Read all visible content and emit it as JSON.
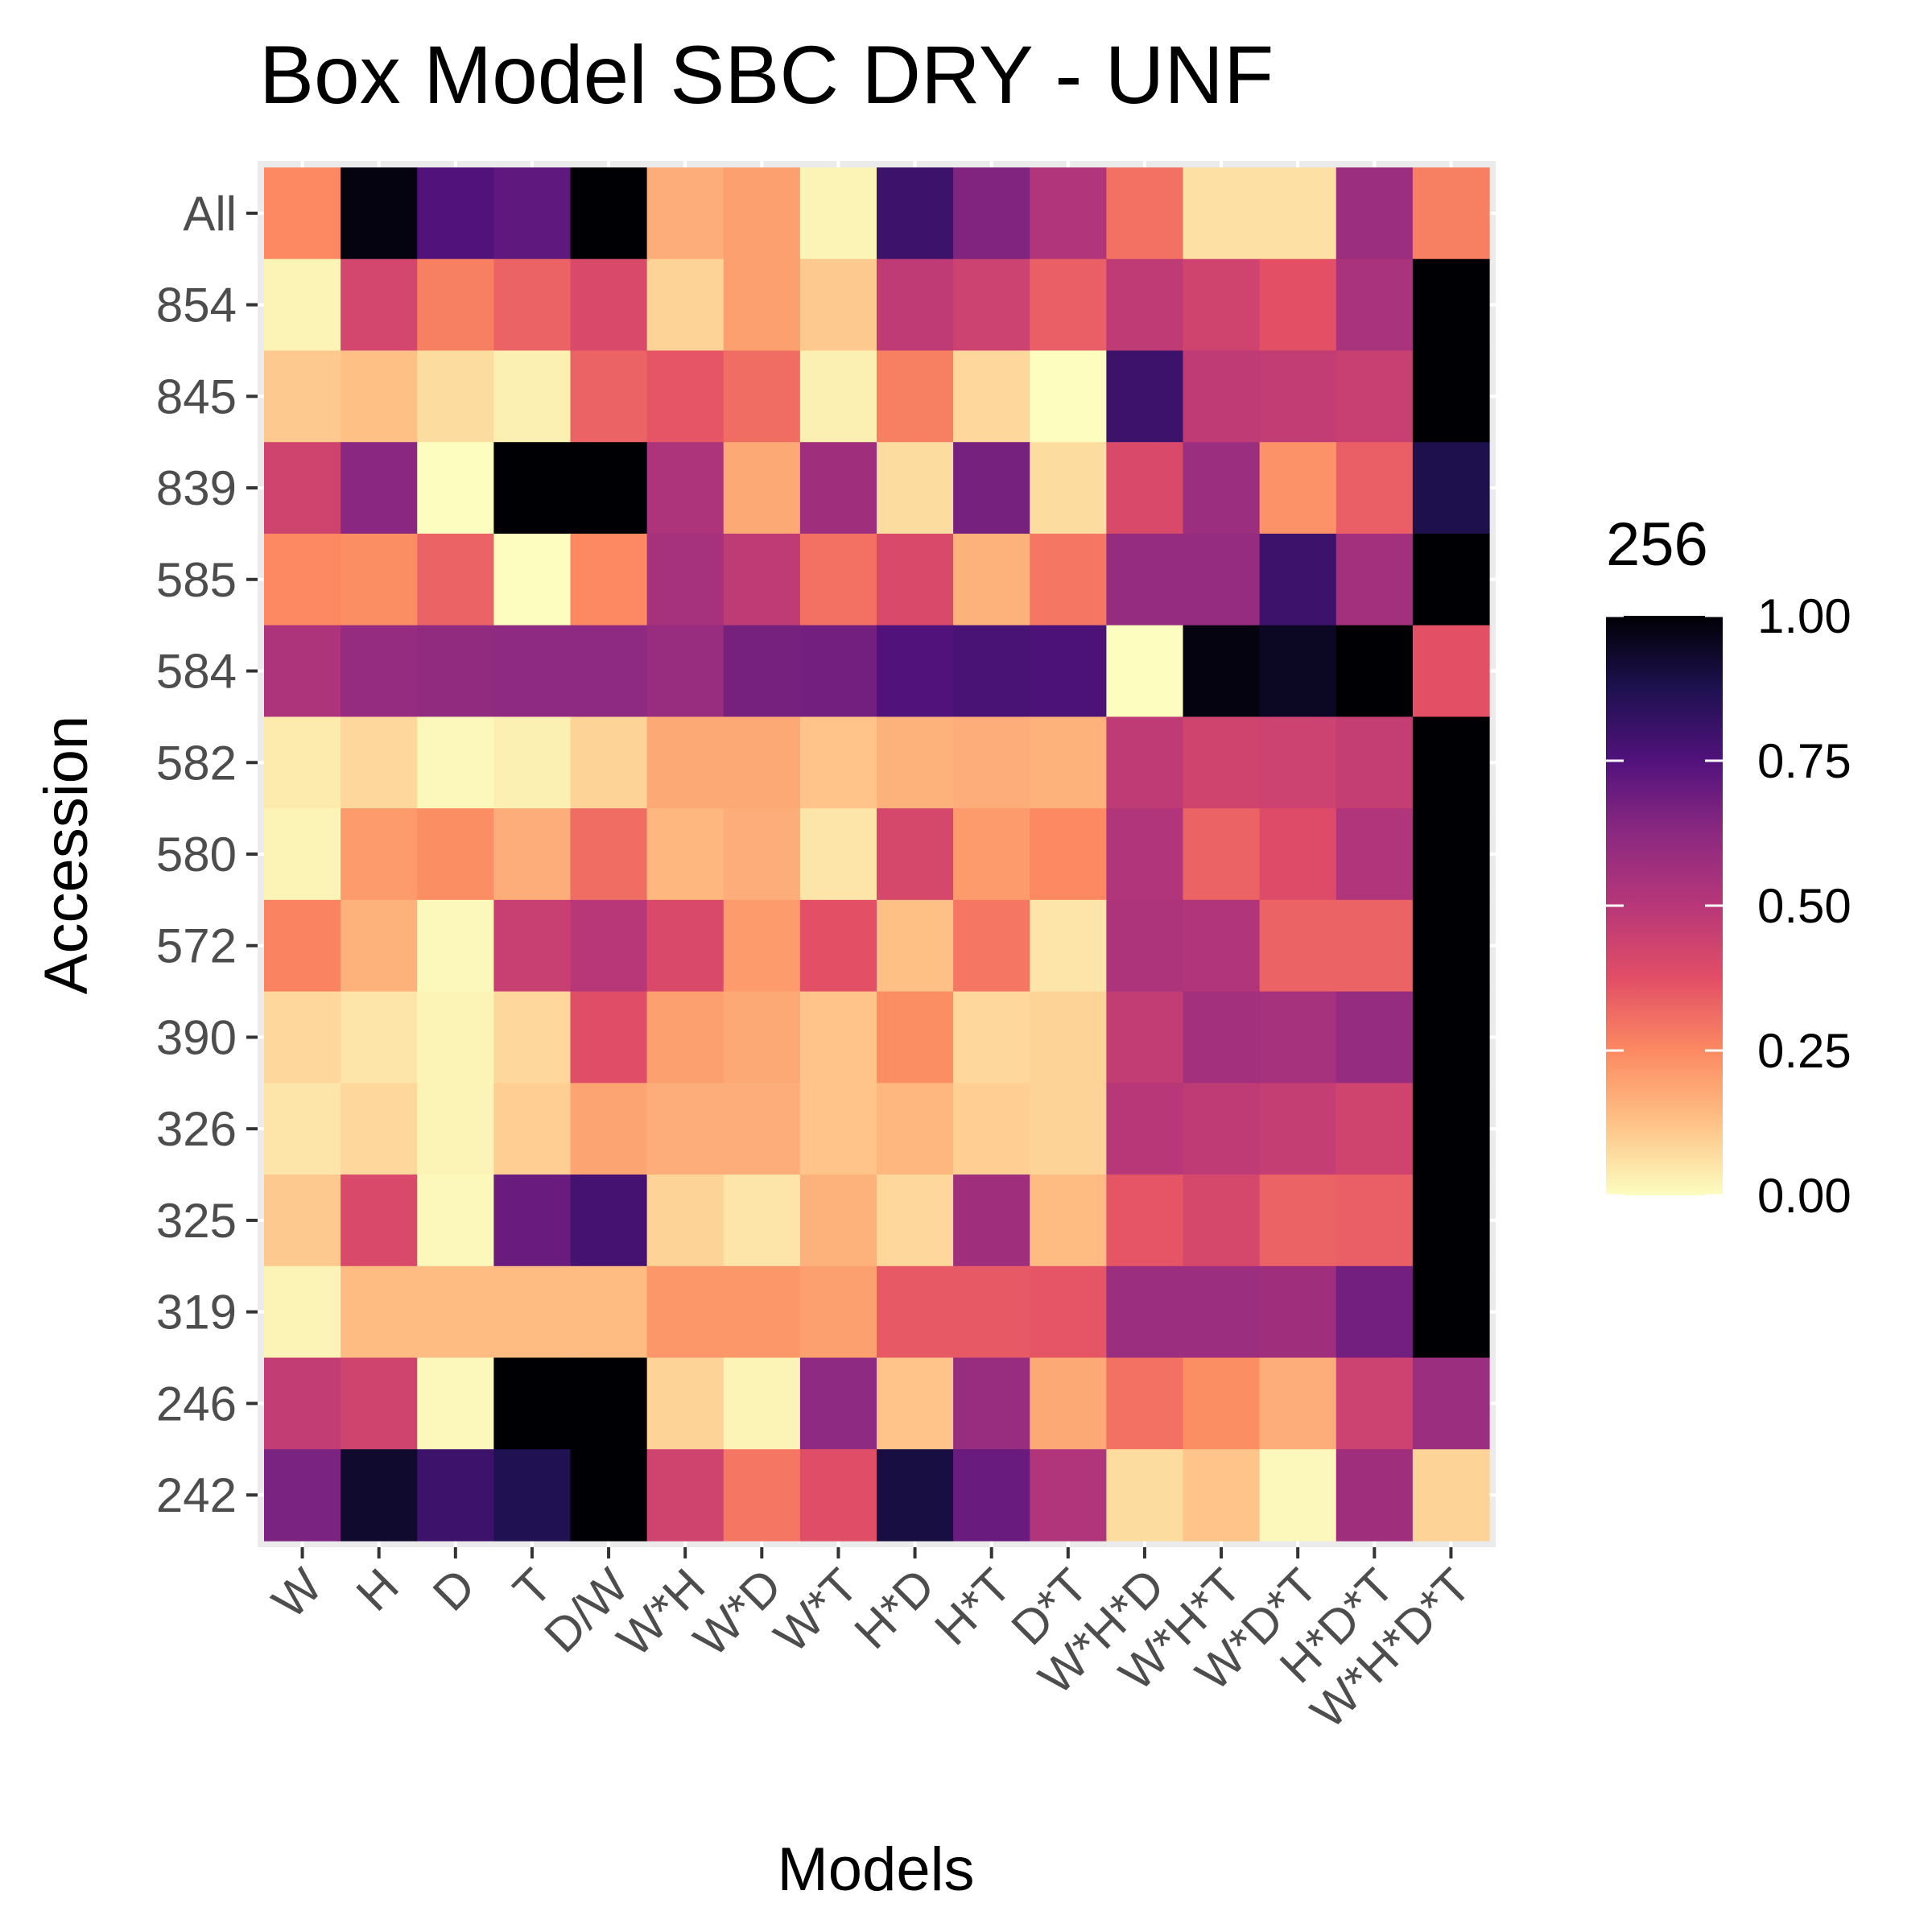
{
  "chart_data": {
    "type": "heatmap",
    "title": "Box Model SBC DRY - UNF",
    "xlabel": "Models",
    "ylabel": "Accession",
    "x": [
      "W",
      "H",
      "D",
      "T",
      "D/W",
      "W*H",
      "W*D",
      "W*T",
      "H*D",
      "H*T",
      "D*T",
      "W*H*D",
      "W*H*T",
      "W*D*T",
      "H*D*T",
      "W*H*D*T"
    ],
    "y": [
      "All",
      "854",
      "845",
      "839",
      "585",
      "584",
      "582",
      "580",
      "572",
      "390",
      "326",
      "325",
      "319",
      "246",
      "242"
    ],
    "values": [
      [
        0.25,
        0.98,
        0.75,
        0.72,
        1.0,
        0.17,
        0.2,
        0.02,
        0.8,
        0.65,
        0.52,
        0.3,
        0.06,
        0.06,
        0.58,
        0.27
      ],
      [
        0.02,
        0.42,
        0.27,
        0.33,
        0.4,
        0.09,
        0.2,
        0.11,
        0.48,
        0.44,
        0.34,
        0.48,
        0.43,
        0.37,
        0.54,
        1.0
      ],
      [
        0.11,
        0.13,
        0.07,
        0.03,
        0.33,
        0.36,
        0.31,
        0.03,
        0.27,
        0.08,
        0.0,
        0.8,
        0.48,
        0.47,
        0.45,
        1.0
      ],
      [
        0.43,
        0.63,
        0.0,
        1.0,
        1.0,
        0.53,
        0.18,
        0.57,
        0.07,
        0.67,
        0.07,
        0.4,
        0.58,
        0.23,
        0.34,
        0.88
      ],
      [
        0.25,
        0.24,
        0.33,
        0.0,
        0.25,
        0.55,
        0.48,
        0.3,
        0.4,
        0.16,
        0.29,
        0.6,
        0.6,
        0.8,
        0.56,
        1.0
      ],
      [
        0.53,
        0.6,
        0.61,
        0.62,
        0.62,
        0.59,
        0.67,
        0.68,
        0.75,
        0.77,
        0.76,
        0.0,
        0.98,
        0.95,
        1.0,
        0.37
      ],
      [
        0.04,
        0.08,
        0.01,
        0.03,
        0.09,
        0.18,
        0.18,
        0.12,
        0.16,
        0.17,
        0.16,
        0.48,
        0.43,
        0.44,
        0.46,
        1.0
      ],
      [
        0.02,
        0.21,
        0.24,
        0.17,
        0.31,
        0.15,
        0.17,
        0.05,
        0.41,
        0.21,
        0.25,
        0.52,
        0.33,
        0.39,
        0.52,
        1.0
      ],
      [
        0.26,
        0.16,
        0.01,
        0.45,
        0.5,
        0.4,
        0.21,
        0.37,
        0.13,
        0.29,
        0.05,
        0.53,
        0.52,
        0.33,
        0.33,
        1.0
      ],
      [
        0.08,
        0.05,
        0.02,
        0.08,
        0.38,
        0.2,
        0.18,
        0.12,
        0.24,
        0.08,
        0.09,
        0.47,
        0.56,
        0.55,
        0.6,
        1.0
      ],
      [
        0.05,
        0.08,
        0.02,
        0.1,
        0.19,
        0.17,
        0.17,
        0.12,
        0.15,
        0.1,
        0.09,
        0.5,
        0.48,
        0.46,
        0.43,
        1.0
      ],
      [
        0.11,
        0.4,
        0.01,
        0.7,
        0.78,
        0.09,
        0.05,
        0.16,
        0.08,
        0.57,
        0.14,
        0.36,
        0.41,
        0.33,
        0.34,
        1.0
      ],
      [
        0.02,
        0.14,
        0.14,
        0.14,
        0.14,
        0.22,
        0.22,
        0.2,
        0.35,
        0.35,
        0.36,
        0.58,
        0.58,
        0.57,
        0.68,
        1.0
      ],
      [
        0.47,
        0.43,
        0.01,
        1.0,
        1.0,
        0.09,
        0.02,
        0.62,
        0.12,
        0.59,
        0.18,
        0.3,
        0.24,
        0.17,
        0.44,
        0.58
      ],
      [
        0.66,
        0.93,
        0.8,
        0.87,
        1.0,
        0.43,
        0.29,
        0.38,
        0.9,
        0.7,
        0.52,
        0.07,
        0.12,
        0.01,
        0.57,
        0.09
      ]
    ],
    "zlim": [
      0,
      1
    ],
    "legend": {
      "title": "256",
      "breaks": [
        0,
        0.25,
        0.5,
        0.75,
        1.0
      ],
      "labels": [
        "0.00",
        "0.25",
        "0.50",
        "0.75",
        "1.00"
      ],
      "position": "right"
    },
    "colormap": "magma reversed (light yellow = 0, black = 1)",
    "colors": [
      "#fcfdbf",
      "#fec287",
      "#fc8961",
      "#e24e66",
      "#b73779",
      "#8c2981",
      "#51127c",
      "#1e1150",
      "#000004"
    ],
    "panel_background": "#ebebeb",
    "grid": true
  }
}
